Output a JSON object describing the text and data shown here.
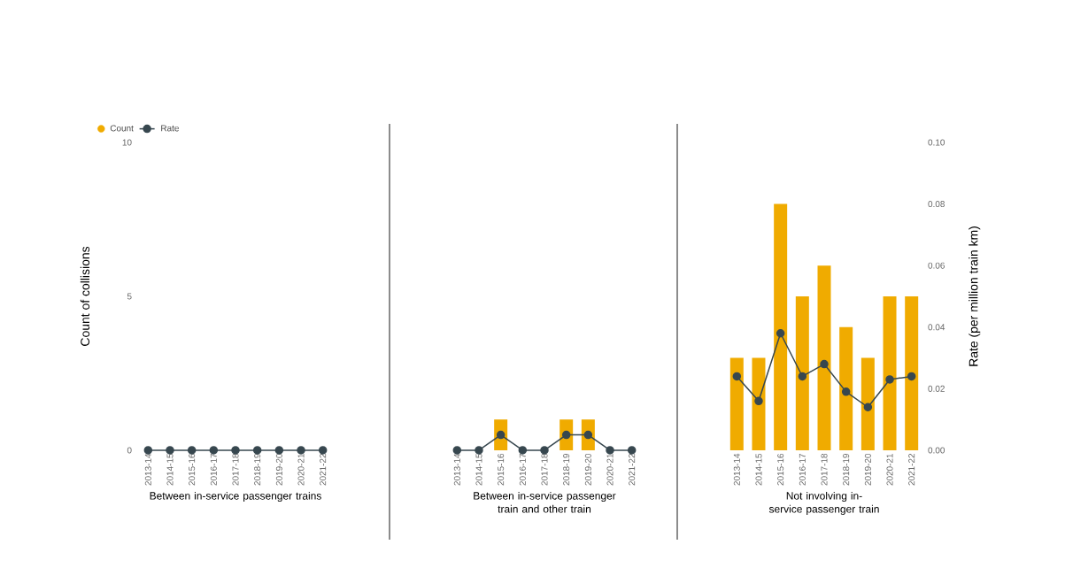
{
  "chart_data": [
    {
      "type": "bar",
      "xlabel": "Between in-service passenger trains",
      "ylabel": "Count of collisions",
      "categories": [
        "2013-14",
        "2014-15",
        "2015-16",
        "2016-17",
        "2017-18",
        "2018-19",
        "2019-20",
        "2020-21",
        "2021-22"
      ],
      "series": [
        {
          "name": "Count",
          "color": "#f0ab00",
          "values": [
            0,
            0,
            0,
            0,
            0,
            0,
            0,
            0,
            0
          ]
        },
        {
          "name": "Rate",
          "type": "line",
          "axis": "y2",
          "marker": "circle",
          "color": "#37474f",
          "values": [
            0,
            0,
            0,
            0,
            0,
            0,
            0,
            0,
            0
          ]
        }
      ],
      "ylim": [
        0,
        10
      ],
      "yticks": [
        0,
        5,
        10
      ],
      "y2lim": [
        0,
        0.1
      ],
      "tick_labels": [
        "x",
        "y"
      ],
      "legend": "top left"
    },
    {
      "type": "bar",
      "xlabel": "Between in-service passenger train and other train",
      "categories": [
        "2013-14",
        "2014-15",
        "2015-16",
        "2016-17",
        "2017-18",
        "2018-19",
        "2019-20",
        "2020-21",
        "2021-22"
      ],
      "series": [
        {
          "color": "#f0ab00",
          "values": [
            0,
            0,
            1,
            0,
            0,
            1,
            1,
            0,
            0
          ]
        },
        {
          "type": "line",
          "axis": "y2",
          "marker": "circle",
          "color": "#37474f",
          "values": [
            0,
            0,
            0.005,
            0,
            0,
            0.005,
            0.005,
            0,
            0
          ]
        }
      ],
      "ylim": [
        0,
        10
      ],
      "y2lim": [
        0,
        0.1
      ],
      "tick_labels": [
        "x"
      ]
    },
    {
      "type": "bar",
      "xlabel": "Not involving in-service passenger train",
      "y2label": "Rate (per million train km)",
      "categories": [
        "2013-14",
        "2014-15",
        "2015-16",
        "2016-17",
        "2017-18",
        "2018-19",
        "2019-20",
        "2020-21",
        "2021-22"
      ],
      "series": [
        {
          "color": "#f0ab00",
          "values": [
            3,
            3,
            8,
            5,
            6,
            4,
            3,
            5,
            5
          ]
        },
        {
          "type": "line",
          "axis": "y2",
          "marker": "circle",
          "color": "#37474f",
          "values": [
            0.024,
            0.016,
            0.038,
            0.024,
            0.028,
            0.019,
            0.014,
            0.023,
            0.024
          ]
        }
      ],
      "ylim": [
        0,
        10
      ],
      "y2lim": [
        0,
        0.1
      ],
      "y2ticks": [
        {
          "value": 0,
          "label": "0.00"
        },
        {
          "value": 0.02,
          "label": "0.02"
        },
        {
          "value": 0.04,
          "label": "0.04"
        },
        {
          "value": 0.06,
          "label": "0.06"
        },
        {
          "value": 0.08,
          "label": "0.08"
        },
        {
          "value": 0.1,
          "label": "0.10"
        }
      ],
      "tick_labels": [
        "x",
        "y2"
      ]
    }
  ]
}
